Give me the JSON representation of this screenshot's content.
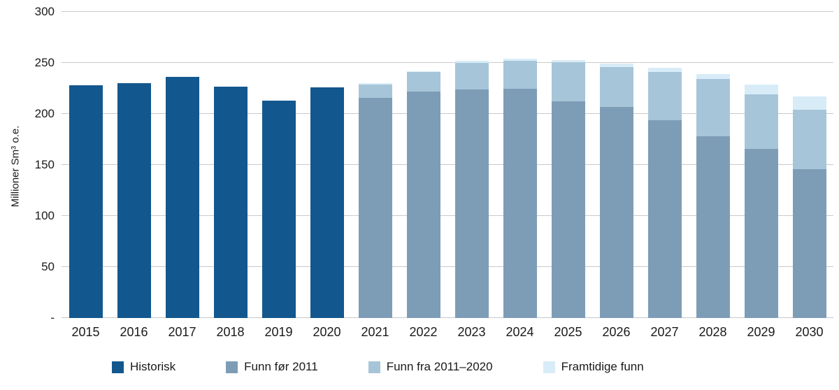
{
  "chart_data": {
    "type": "bar",
    "stacked": true,
    "title": "",
    "xlabel": "",
    "ylabel": "Millioner Sm³ o.e.",
    "ylim": [
      0,
      300
    ],
    "ytick_interval": 50,
    "ytick_labels": [
      "-",
      "50",
      "100",
      "150",
      "200",
      "250",
      "300"
    ],
    "grid": true,
    "legend_position": "bottom",
    "categories": [
      "2015",
      "2016",
      "2017",
      "2018",
      "2019",
      "2020",
      "2021",
      "2022",
      "2023",
      "2024",
      "2025",
      "2026",
      "2027",
      "2028",
      "2029",
      "2030"
    ],
    "series": [
      {
        "name": "Historisk",
        "color": "#13578f",
        "values": [
          228,
          230,
          236,
          227,
          213,
          226,
          0,
          0,
          0,
          0,
          0,
          0,
          0,
          0,
          0,
          0
        ]
      },
      {
        "name": "Funn før 2011",
        "color": "#7d9db7",
        "values": [
          0,
          0,
          0,
          0,
          0,
          0,
          216,
          222,
          224,
          225,
          212,
          207,
          194,
          178,
          166,
          146
        ]
      },
      {
        "name": "Funn fra 2011–2020",
        "color": "#a7c5d8",
        "values": [
          0,
          0,
          0,
          0,
          0,
          0,
          13,
          19,
          26,
          27,
          39,
          39,
          47,
          56,
          53,
          58
        ]
      },
      {
        "name": "Framtidige funn",
        "color": "#d8ecf8",
        "values": [
          0,
          0,
          0,
          0,
          0,
          0,
          1,
          1,
          2,
          2,
          2,
          3,
          4,
          5,
          10,
          13
        ]
      }
    ]
  }
}
